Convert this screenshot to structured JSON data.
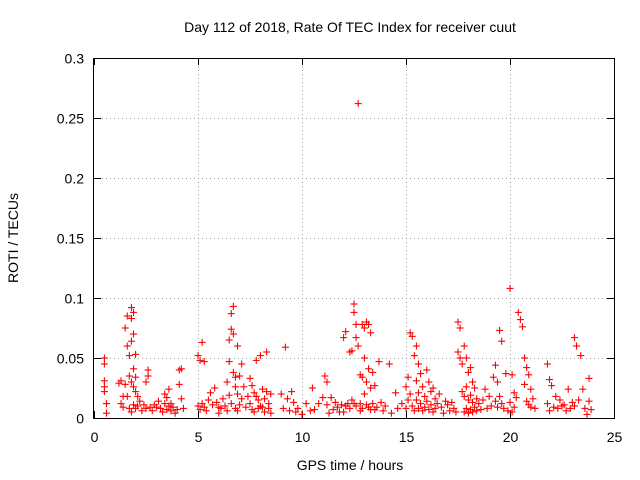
{
  "chart_data": {
    "type": "scatter",
    "title": "Day 112 of 2018, Rate Of TEC Index for receiver cuut",
    "xlabel": "GPS time / hours",
    "ylabel": "ROTI / TECUs",
    "xlim": [
      0,
      25
    ],
    "ylim": [
      0,
      0.3
    ],
    "xticks": [
      0,
      5,
      10,
      15,
      20,
      25
    ],
    "xtick_labels": [
      "0",
      "5",
      "10",
      "15",
      "20",
      "25"
    ],
    "yticks": [
      0,
      0.05,
      0.1,
      0.15,
      0.2,
      0.25,
      0.3
    ],
    "ytick_labels": [
      "0",
      "0.05",
      "0.1",
      "0.15",
      "0.2",
      "0.25",
      "0.3"
    ],
    "grid": true,
    "marker": "+",
    "color": "#ff0000",
    "series": [
      {
        "name": "ROTI",
        "x": [
          0.5,
          0.5,
          0.5,
          0.5,
          0.5,
          0.6,
          0.6,
          1.2,
          1.3,
          1.3,
          1.4,
          1.4,
          1.5,
          1.5,
          1.6,
          1.6,
          1.6,
          1.7,
          1.7,
          1.7,
          1.8,
          1.8,
          1.8,
          1.8,
          1.8,
          1.9,
          1.9,
          1.9,
          1.9,
          1.9,
          2.0,
          2.0,
          2.0,
          2.0,
          2.1,
          2.1,
          2.2,
          2.3,
          2.4,
          2.5,
          2.5,
          2.6,
          2.6,
          2.7,
          2.8,
          2.9,
          3.0,
          3.1,
          3.2,
          3.3,
          3.4,
          3.4,
          3.5,
          3.5,
          3.6,
          3.6,
          3.7,
          3.7,
          3.8,
          3.9,
          4.0,
          4.1,
          4.1,
          4.2,
          4.2,
          4.3,
          5.0,
          5.0,
          5.1,
          5.1,
          5.2,
          5.2,
          5.3,
          5.3,
          5.4,
          5.5,
          5.6,
          5.7,
          5.8,
          5.9,
          6.0,
          6.0,
          6.1,
          6.2,
          6.3,
          6.4,
          6.4,
          6.5,
          6.5,
          6.5,
          6.6,
          6.6,
          6.6,
          6.7,
          6.7,
          6.7,
          6.8,
          6.8,
          6.8,
          6.9,
          6.9,
          6.9,
          7.0,
          7.0,
          7.1,
          7.1,
          7.2,
          7.3,
          7.4,
          7.5,
          7.5,
          7.6,
          7.6,
          7.7,
          7.7,
          7.8,
          7.8,
          7.9,
          7.9,
          8.0,
          8.0,
          8.1,
          8.1,
          8.2,
          8.2,
          8.3,
          8.3,
          8.4,
          8.4,
          8.5,
          8.5,
          9.0,
          9.1,
          9.2,
          9.3,
          9.4,
          9.5,
          9.6,
          9.7,
          9.8,
          10.0,
          10.2,
          10.4,
          10.5,
          10.6,
          10.8,
          11.0,
          11.1,
          11.2,
          11.2,
          11.3,
          11.4,
          11.5,
          11.6,
          11.7,
          11.8,
          11.9,
          12.0,
          12.0,
          12.1,
          12.1,
          12.2,
          12.3,
          12.3,
          12.4,
          12.4,
          12.5,
          12.5,
          12.5,
          12.6,
          12.6,
          12.6,
          12.7,
          12.7,
          12.8,
          12.8,
          12.8,
          12.9,
          12.9,
          12.9,
          13.0,
          13.0,
          13.0,
          13.1,
          13.1,
          13.1,
          13.2,
          13.2,
          13.2,
          13.3,
          13.3,
          13.3,
          13.4,
          13.4,
          13.5,
          13.5,
          13.6,
          13.7,
          13.8,
          13.9,
          14.0,
          14.2,
          14.3,
          14.5,
          14.6,
          14.8,
          15.0,
          15.0,
          15.1,
          15.1,
          15.2,
          15.2,
          15.3,
          15.3,
          15.4,
          15.4,
          15.5,
          15.5,
          15.5,
          15.6,
          15.6,
          15.6,
          15.7,
          15.7,
          15.8,
          15.8,
          15.9,
          15.9,
          16.0,
          16.0,
          16.1,
          16.1,
          16.2,
          16.2,
          16.3,
          16.3,
          16.4,
          16.4,
          16.5,
          16.6,
          16.7,
          16.8,
          16.9,
          17.0,
          17.1,
          17.2,
          17.3,
          17.4,
          17.5,
          17.5,
          17.6,
          17.6,
          17.7,
          17.7,
          17.8,
          17.8,
          17.8,
          17.9,
          17.9,
          17.9,
          18.0,
          18.0,
          18.0,
          18.1,
          18.1,
          18.1,
          18.2,
          18.2,
          18.2,
          18.3,
          18.3,
          18.4,
          18.4,
          18.5,
          18.6,
          18.7,
          18.8,
          18.9,
          19.0,
          19.1,
          19.2,
          19.3,
          19.3,
          19.4,
          19.4,
          19.5,
          19.5,
          19.6,
          19.6,
          19.7,
          19.8,
          19.9,
          20.0,
          20.0,
          20.1,
          20.1,
          20.2,
          20.2,
          20.3,
          20.4,
          20.5,
          20.6,
          20.7,
          20.7,
          20.8,
          20.8,
          20.9,
          20.9,
          21.0,
          21.0,
          21.1,
          21.2,
          21.8,
          21.8,
          21.9,
          21.9,
          22.0,
          22.1,
          22.2,
          22.3,
          22.4,
          22.5,
          22.6,
          22.7,
          22.8,
          22.9,
          23.0,
          23.1,
          23.1,
          23.2,
          23.3,
          23.4,
          23.5,
          23.6,
          23.7,
          23.8,
          23.8,
          23.9
        ],
        "y": [
          0.05,
          0.045,
          0.031,
          0.026,
          0.022,
          0.004,
          0.012,
          0.029,
          0.031,
          0.012,
          0.018,
          0.009,
          0.028,
          0.075,
          0.085,
          0.06,
          0.018,
          0.052,
          0.035,
          0.008,
          0.092,
          0.083,
          0.064,
          0.03,
          0.005,
          0.088,
          0.07,
          0.041,
          0.026,
          0.011,
          0.053,
          0.034,
          0.022,
          0.008,
          0.018,
          0.01,
          0.014,
          0.006,
          0.011,
          0.03,
          0.008,
          0.04,
          0.035,
          0.009,
          0.006,
          0.011,
          0.009,
          0.014,
          0.008,
          0.005,
          0.02,
          0.012,
          0.017,
          0.007,
          0.024,
          0.01,
          0.006,
          0.012,
          0.009,
          0.004,
          0.007,
          0.04,
          0.028,
          0.041,
          0.016,
          0.008,
          0.052,
          0.01,
          0.048,
          0.007,
          0.063,
          0.012,
          0.047,
          0.009,
          0.006,
          0.015,
          0.021,
          0.011,
          0.025,
          0.013,
          0.009,
          0.004,
          0.008,
          0.016,
          0.01,
          0.006,
          0.03,
          0.065,
          0.047,
          0.019,
          0.087,
          0.074,
          0.012,
          0.093,
          0.07,
          0.038,
          0.034,
          0.026,
          0.008,
          0.06,
          0.02,
          0.006,
          0.035,
          0.011,
          0.045,
          0.016,
          0.026,
          0.009,
          0.018,
          0.033,
          0.012,
          0.027,
          0.007,
          0.021,
          0.005,
          0.048,
          0.018,
          0.015,
          0.008,
          0.052,
          0.01,
          0.009,
          0.024,
          0.016,
          0.005,
          0.055,
          0.022,
          0.012,
          0.008,
          0.02,
          0.004,
          0.02,
          0.008,
          0.059,
          0.016,
          0.006,
          0.022,
          0.013,
          0.005,
          0.008,
          0.003,
          0.012,
          0.006,
          0.025,
          0.007,
          0.012,
          0.017,
          0.035,
          0.03,
          0.011,
          0.004,
          0.017,
          0.007,
          0.013,
          0.009,
          0.005,
          0.011,
          0.067,
          0.005,
          0.072,
          0.01,
          0.012,
          0.055,
          0.008,
          0.056,
          0.015,
          0.095,
          0.088,
          0.012,
          0.078,
          0.067,
          0.01,
          0.262,
          0.06,
          0.036,
          0.012,
          0.006,
          0.078,
          0.034,
          0.008,
          0.075,
          0.05,
          0.02,
          0.08,
          0.03,
          0.011,
          0.078,
          0.041,
          0.009,
          0.071,
          0.025,
          0.007,
          0.038,
          0.012,
          0.027,
          0.007,
          0.009,
          0.047,
          0.013,
          0.006,
          0.01,
          0.045,
          0.004,
          0.021,
          0.008,
          0.012,
          0.026,
          0.008,
          0.034,
          0.015,
          0.071,
          0.02,
          0.068,
          0.01,
          0.052,
          0.006,
          0.06,
          0.031,
          0.015,
          0.045,
          0.021,
          0.008,
          0.037,
          0.012,
          0.026,
          0.006,
          0.018,
          0.009,
          0.04,
          0.014,
          0.03,
          0.007,
          0.022,
          0.011,
          0.025,
          0.005,
          0.016,
          0.008,
          0.012,
          0.02,
          0.009,
          0.004,
          0.014,
          0.011,
          0.006,
          0.013,
          0.008,
          0.005,
          0.08,
          0.055,
          0.075,
          0.05,
          0.045,
          0.022,
          0.06,
          0.018,
          0.005,
          0.05,
          0.026,
          0.008,
          0.038,
          0.015,
          0.004,
          0.042,
          0.019,
          0.007,
          0.03,
          0.013,
          0.005,
          0.025,
          0.009,
          0.016,
          0.006,
          0.012,
          0.007,
          0.015,
          0.024,
          0.008,
          0.018,
          0.01,
          0.034,
          0.044,
          0.014,
          0.03,
          0.009,
          0.073,
          0.018,
          0.064,
          0.012,
          0.008,
          0.037,
          0.006,
          0.108,
          0.013,
          0.036,
          0.005,
          0.021,
          0.009,
          0.017,
          0.088,
          0.082,
          0.076,
          0.05,
          0.028,
          0.042,
          0.014,
          0.036,
          0.011,
          0.024,
          0.009,
          0.016,
          0.008,
          0.045,
          0.012,
          0.032,
          0.006,
          0.027,
          0.009,
          0.018,
          0.008,
          0.015,
          0.01,
          0.011,
          0.006,
          0.024,
          0.008,
          0.013,
          0.067,
          0.01,
          0.06,
          0.015,
          0.052,
          0.024,
          0.008,
          0.003,
          0.033,
          0.014,
          0.007
        ]
      }
    ]
  }
}
